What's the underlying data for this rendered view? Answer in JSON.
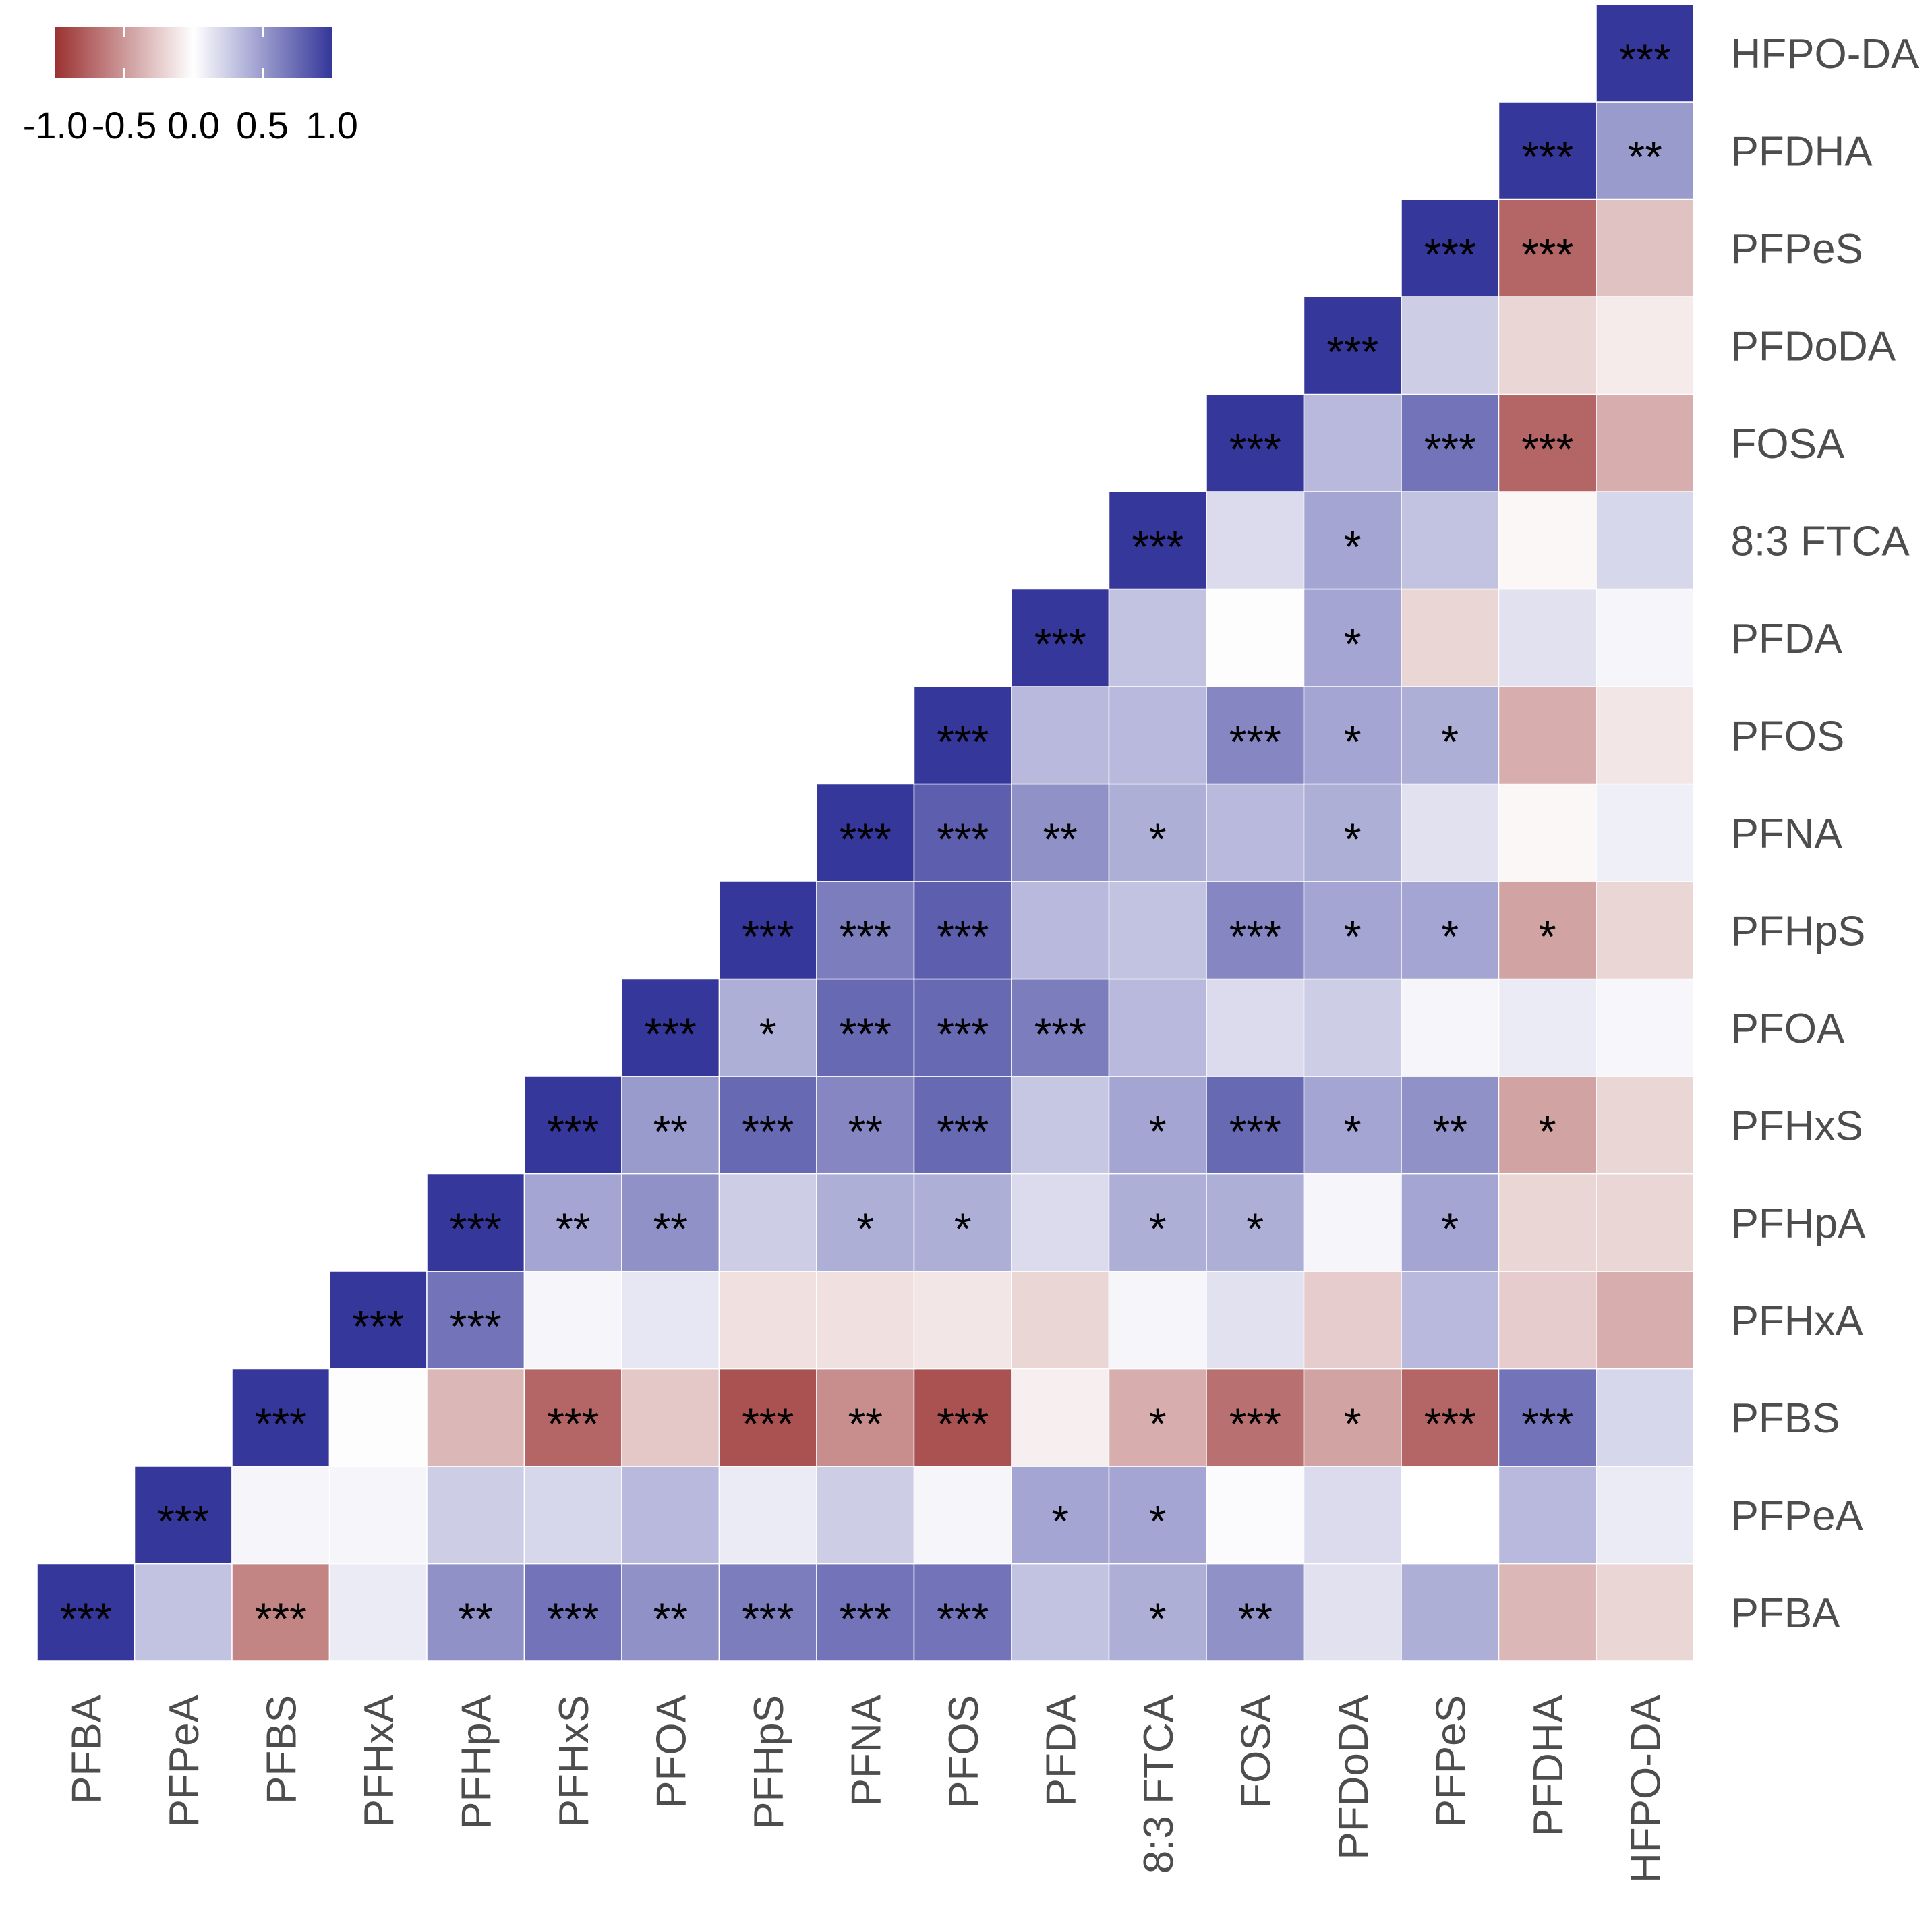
{
  "chart_data": {
    "type": "heatmap",
    "title": "",
    "xlabel": "",
    "ylabel": "",
    "variables": [
      "PFBA",
      "PFPeA",
      "PFBS",
      "PFHxA",
      "PFHpA",
      "PFHxS",
      "PFOA",
      "PFHpS",
      "PFNA",
      "PFOS",
      "PFDA",
      "8:3 FTCA",
      "FOSA",
      "PFDoDA",
      "PFPeS",
      "PFDHA",
      "HFPO-DA"
    ],
    "x_labels": [
      "PFBA",
      "PFPeA",
      "PFBS",
      "PFHxA",
      "PFHpA",
      "PFHxS",
      "PFOA",
      "PFHpS",
      "PFNA",
      "PFOS",
      "PFDA",
      "8:3 FTCA",
      "FOSA",
      "PFDoDA",
      "PFPeS",
      "PFDHA",
      "HFPO-DA"
    ],
    "y_labels": [
      "PFBA",
      "PFPeA",
      "PFBS",
      "PFHxA",
      "PFHpA",
      "PFHxS",
      "PFOA",
      "PFHpS",
      "PFNA",
      "PFOS",
      "PFDA",
      "8:3 FTCA",
      "FOSA",
      "PFDoDA",
      "PFPeS",
      "PFDHA",
      "HFPO-DA"
    ],
    "values": [
      [
        1.0,
        0.3,
        -0.6,
        0.1,
        0.55,
        0.7,
        0.55,
        0.65,
        0.7,
        0.7,
        0.3,
        0.4,
        0.55,
        0.15,
        0.4,
        -0.35,
        -0.2
      ],
      [
        0.3,
        1.0,
        0.05,
        0.05,
        0.25,
        0.2,
        0.35,
        0.1,
        0.25,
        0.05,
        0.45,
        0.45,
        0.02,
        0.18,
        0.0,
        0.35,
        0.1
      ],
      [
        -0.6,
        0.05,
        1.0,
        0.01,
        -0.35,
        -0.75,
        -0.27,
        -0.85,
        -0.55,
        -0.85,
        -0.08,
        -0.4,
        -0.7,
        -0.45,
        -0.75,
        0.7,
        0.2
      ],
      [
        0.1,
        0.05,
        0.01,
        1.0,
        0.7,
        0.05,
        0.12,
        -0.15,
        -0.15,
        -0.12,
        -0.2,
        0.05,
        0.15,
        -0.25,
        0.35,
        -0.25,
        -0.4
      ],
      [
        0.55,
        0.25,
        -0.35,
        0.7,
        1.0,
        0.45,
        0.55,
        0.25,
        0.4,
        0.4,
        0.18,
        0.4,
        0.4,
        0.05,
        0.45,
        -0.2,
        -0.2
      ],
      [
        0.7,
        0.2,
        -0.75,
        0.05,
        0.45,
        1.0,
        0.5,
        0.75,
        0.6,
        0.75,
        0.28,
        0.45,
        0.75,
        0.45,
        0.55,
        -0.45,
        -0.2
      ],
      [
        0.55,
        0.35,
        -0.27,
        0.12,
        0.55,
        0.5,
        1.0,
        0.4,
        0.75,
        0.75,
        0.65,
        0.35,
        0.18,
        0.25,
        0.05,
        0.1,
        0.04
      ],
      [
        0.65,
        0.1,
        -0.85,
        -0.15,
        0.25,
        0.75,
        0.4,
        1.0,
        0.65,
        0.8,
        0.35,
        0.3,
        0.6,
        0.45,
        0.45,
        -0.45,
        -0.2
      ],
      [
        0.7,
        0.25,
        -0.55,
        -0.15,
        0.4,
        0.6,
        0.75,
        0.65,
        1.0,
        0.8,
        0.55,
        0.4,
        0.35,
        0.4,
        0.15,
        -0.04,
        0.08
      ],
      [
        0.7,
        0.05,
        -0.85,
        -0.12,
        0.4,
        0.75,
        0.75,
        0.8,
        0.8,
        1.0,
        0.35,
        0.35,
        0.6,
        0.45,
        0.4,
        -0.4,
        -0.12
      ],
      [
        0.3,
        0.45,
        -0.08,
        -0.2,
        0.18,
        0.28,
        0.65,
        0.35,
        0.55,
        0.35,
        1.0,
        0.3,
        0.01,
        0.45,
        -0.2,
        0.15,
        0.05
      ],
      [
        0.4,
        0.45,
        -0.4,
        0.05,
        0.4,
        0.45,
        0.35,
        0.3,
        0.4,
        0.35,
        0.3,
        1.0,
        0.18,
        0.45,
        0.3,
        -0.04,
        0.2
      ],
      [
        0.55,
        0.02,
        -0.7,
        0.15,
        0.4,
        0.75,
        0.18,
        0.6,
        0.35,
        0.6,
        0.01,
        0.18,
        1.0,
        0.35,
        0.7,
        -0.75,
        -0.4
      ],
      [
        0.15,
        0.18,
        -0.45,
        -0.25,
        0.05,
        0.45,
        0.25,
        0.45,
        0.4,
        0.45,
        0.45,
        0.45,
        0.35,
        1.0,
        0.25,
        -0.2,
        -0.1
      ],
      [
        0.4,
        0.0,
        -0.75,
        0.35,
        0.45,
        0.55,
        0.05,
        0.45,
        0.15,
        0.4,
        -0.2,
        0.3,
        0.7,
        0.25,
        1.0,
        -0.75,
        -0.3
      ],
      [
        -0.35,
        0.35,
        0.7,
        -0.25,
        -0.2,
        -0.45,
        0.1,
        -0.45,
        -0.04,
        -0.4,
        0.15,
        -0.04,
        -0.75,
        -0.2,
        -0.75,
        1.0,
        0.5
      ],
      [
        -0.2,
        0.1,
        0.2,
        -0.4,
        -0.2,
        -0.2,
        0.04,
        -0.2,
        0.08,
        -0.12,
        0.05,
        0.2,
        -0.4,
        -0.1,
        -0.3,
        0.5,
        1.0
      ]
    ],
    "significance": [
      [
        "***",
        "",
        "***",
        "",
        "**",
        "***",
        "**",
        "***",
        "***",
        "***",
        "",
        "*",
        "**",
        "",
        "",
        "",
        ""
      ],
      [
        "",
        "***",
        "",
        "",
        "",
        "",
        "",
        "",
        "",
        "",
        "*",
        "*",
        "",
        "",
        "",
        "",
        ""
      ],
      [
        "***",
        "",
        "***",
        "",
        "",
        "***",
        "",
        "***",
        "**",
        "***",
        "",
        "*",
        "***",
        "*",
        "***",
        "***",
        ""
      ],
      [
        "",
        "",
        "",
        "***",
        "***",
        "",
        "",
        "",
        "",
        "",
        "",
        "",
        "",
        "",
        "",
        "",
        ""
      ],
      [
        "**",
        "",
        "",
        "***",
        "***",
        "**",
        "**",
        "",
        "*",
        "*",
        "",
        "*",
        "*",
        "",
        "*",
        "",
        ""
      ],
      [
        "***",
        "",
        "***",
        "",
        "**",
        "***",
        "**",
        "***",
        "**",
        "***",
        "",
        "*",
        "***",
        "*",
        "**",
        "*",
        ""
      ],
      [
        "**",
        "",
        "",
        "",
        "**",
        "**",
        "***",
        "*",
        "***",
        "***",
        "***",
        "",
        "",
        "",
        "",
        "",
        ""
      ],
      [
        "***",
        "",
        "***",
        "",
        "",
        "***",
        "*",
        "***",
        "***",
        "***",
        "",
        "",
        "***",
        "*",
        "*",
        "*",
        ""
      ],
      [
        "***",
        "",
        "**",
        "",
        "*",
        "**",
        "***",
        "***",
        "***",
        "***",
        "**",
        "*",
        "",
        "*",
        "",
        "",
        ""
      ],
      [
        "***",
        "",
        "***",
        "",
        "*",
        "***",
        "***",
        "***",
        "***",
        "***",
        "",
        "",
        "***",
        "*",
        "*",
        "",
        ""
      ],
      [
        "",
        "*",
        "",
        "",
        "",
        "",
        "***",
        "",
        "**",
        "",
        "***",
        "",
        "",
        "*",
        "",
        "",
        ""
      ],
      [
        "*",
        "*",
        "*",
        "",
        "*",
        "*",
        "",
        "",
        "*",
        "",
        "",
        "***",
        "",
        "*",
        "",
        "",
        ""
      ],
      [
        "**",
        "",
        "***",
        "",
        "*",
        "***",
        "",
        "***",
        "",
        "***",
        "",
        "",
        "***",
        "",
        "***",
        "***",
        ""
      ],
      [
        "",
        "",
        "*",
        "",
        "",
        "*",
        "",
        "*",
        "*",
        "*",
        "*",
        "*",
        "",
        "***",
        "",
        "",
        ""
      ],
      [
        "",
        "",
        "***",
        "",
        "*",
        "**",
        "",
        "*",
        "",
        "*",
        "",
        "",
        "***",
        "",
        "***",
        "***",
        ""
      ],
      [
        "",
        "",
        "***",
        "",
        "",
        "*",
        "",
        "*",
        "",
        "",
        "",
        "",
        "***",
        "",
        "***",
        "***",
        "**"
      ],
      [
        "",
        "",
        "",
        "",
        "",
        "",
        "",
        "",
        "",
        "",
        "",
        "",
        "",
        "",
        "",
        "**",
        "***"
      ]
    ],
    "triangle": "upper",
    "legend": {
      "position": "top-left",
      "orientation": "horizontal",
      "tick_labels": [
        "-1.0",
        "-0.5",
        "0.0",
        "0.5",
        "1.0"
      ],
      "range": [
        -1.0,
        1.0
      ]
    },
    "colors": {
      "low": "#9b3232",
      "mid": "#ffffff",
      "high": "#35379a"
    }
  }
}
